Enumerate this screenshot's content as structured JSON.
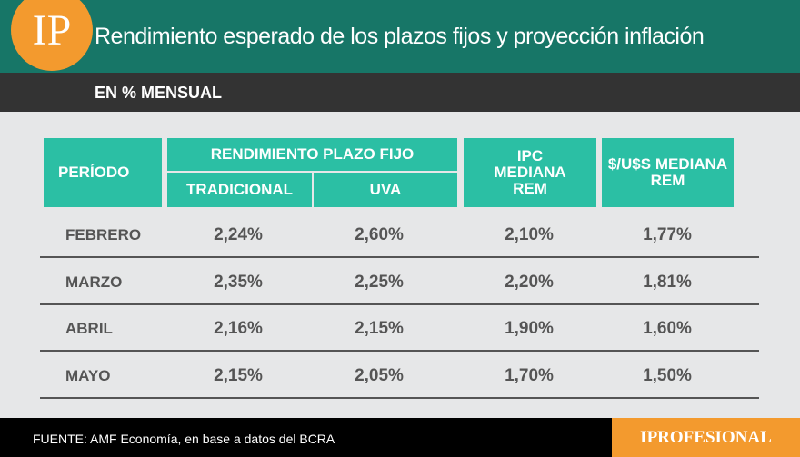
{
  "header": {
    "logo": "IP",
    "title": "Rendimiento esperado de los plazos fijos y proyección inflación",
    "subtitle": "EN % MENSUAL"
  },
  "table": {
    "headers": {
      "period": "PERÍODO",
      "group": "RENDIMIENTO PLAZO FIJO",
      "traditional": "TRADICIONAL",
      "uva": "UVA",
      "ipc": "IPC MEDIANA REM",
      "fx": "$/U$S MEDIANA REM"
    },
    "rows": [
      [
        "FEBRERO",
        "2,24%",
        "2,60%",
        "2,10%",
        "1,77%"
      ],
      [
        "MARZO",
        "2,35%",
        "2,25%",
        "2,20%",
        "1,81%"
      ],
      [
        "ABRIL",
        "2,16%",
        "2,15%",
        "1,90%",
        "1,60%"
      ],
      [
        "MAYO",
        "2,15%",
        "2,05%",
        "1,70%",
        "1,50%"
      ]
    ]
  },
  "footer": {
    "source": "FUENTE: AMF Economía, en base a datos del BCRA",
    "brand": "IPROFESIONAL"
  }
}
